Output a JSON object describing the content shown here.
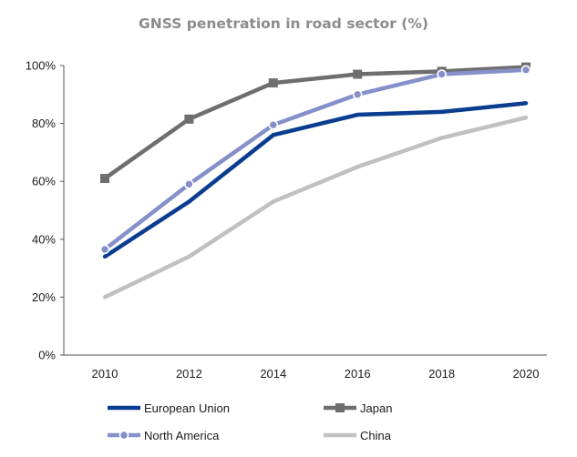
{
  "chart_data": {
    "type": "line",
    "title": "GNSS penetration in road sector (%)",
    "xlabel": "",
    "ylabel": "",
    "x": [
      "2010",
      "2012",
      "2014",
      "2016",
      "2018",
      "2020"
    ],
    "ylim": [
      0,
      100
    ],
    "y_ticks": [
      "0%",
      "20%",
      "40%",
      "60%",
      "80%",
      "100%"
    ],
    "grid": false,
    "legend_position": "bottom",
    "series": [
      {
        "name": "European Union",
        "values": [
          34,
          53,
          76,
          83,
          84,
          87
        ],
        "color": "#0a3d8f",
        "marker": "none"
      },
      {
        "name": "Japan",
        "values": [
          61,
          81.5,
          94,
          97,
          98,
          99.5
        ],
        "color": "#6e6e6e",
        "marker": "square"
      },
      {
        "name": "North America",
        "values": [
          36.5,
          59,
          79.5,
          90,
          97,
          98.5
        ],
        "color": "#8590c9",
        "marker": "circle"
      },
      {
        "name": "China",
        "values": [
          20,
          34,
          53,
          65,
          75,
          82
        ],
        "color": "#c0c0c0",
        "marker": "none"
      }
    ]
  }
}
